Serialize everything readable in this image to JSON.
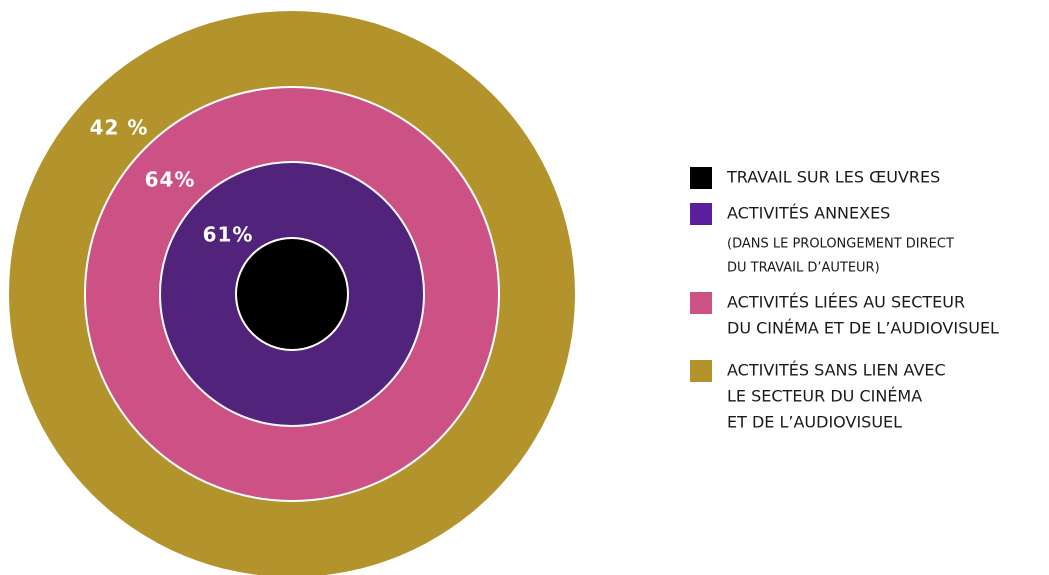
{
  "rings": [
    {
      "label": "42 %",
      "color": "#b3932c"
    },
    {
      "label": "64%",
      "color": "#cc5285"
    },
    {
      "label": "61%",
      "color": "#51237a"
    },
    {
      "color": "#000000"
    }
  ],
  "legend": [
    {
      "color": "#000000",
      "lines": [
        "TRAVAIL SUR LES ŒUVRES"
      ]
    },
    {
      "color": "#5a1f9a",
      "lines": [
        "ACTIVITÉS ANNEXES"
      ],
      "note": [
        "(DANS LE PROLONGEMENT DIRECT",
        "DU TRAVAIL D’AUTEUR)"
      ]
    },
    {
      "color": "#cc5285",
      "lines": [
        "ACTIVITÉS LIÉES AU SECTEUR",
        "DU CINÉMA ET DE L’AUDIOVISUEL"
      ]
    },
    {
      "color": "#b3932c",
      "lines": [
        "ACTIVITÉS SANS LIEN AVEC",
        "LE SECTEUR DU CINÉMA",
        "ET DE L’AUDIOVISUEL"
      ]
    }
  ]
}
